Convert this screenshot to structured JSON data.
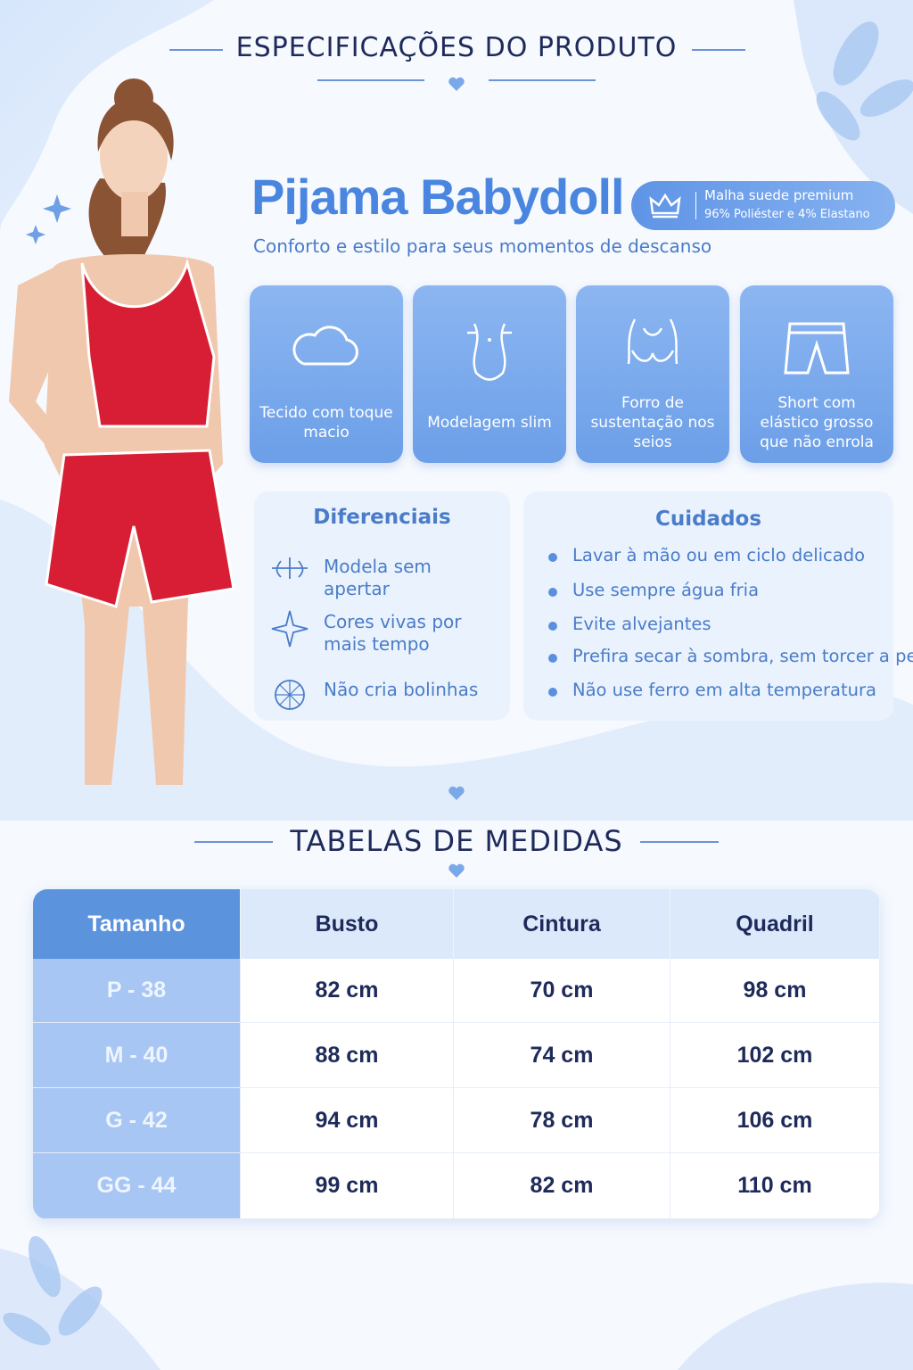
{
  "header": {
    "title": "ESPECIFICAÇÕES DO PRODUTO"
  },
  "product": {
    "name": "Pijama Babydoll",
    "badge": [
      "Malha suede premium",
      "96% Poliéster e 4% Elastano"
    ],
    "subtitle": "Conforto e estilo para seus momentos de descanso"
  },
  "features": [
    "Tecido com toque macio",
    "Modelagem slim",
    "Forro de sustentação nos seios",
    "Short com elástico grosso que não enrola"
  ],
  "diferenciais": {
    "title": "Diferenciais",
    "items": [
      "Modela sem apertar",
      "Cores vivas por mais tempo",
      "Não cria bolinhas"
    ]
  },
  "cuidados": {
    "title": "Cuidados",
    "items": [
      "Lavar à mão ou em ciclo delicado",
      "Use sempre água fria",
      "Evite alvejantes",
      "Prefira secar à sombra, sem torcer a peça",
      "Não use ferro em alta temperatura"
    ]
  },
  "sizes": {
    "title": "TABELAS DE MEDIDAS"
  },
  "table": {
    "header": [
      "Tamanho",
      "Busto",
      "Cintura",
      "Quadril"
    ],
    "rows": [
      [
        "P - 38",
        "82 cm",
        "70 cm",
        "98 cm"
      ],
      [
        "M - 40",
        "88 cm",
        "74 cm",
        "102 cm"
      ],
      [
        "G - 42",
        "94 cm",
        "78 cm",
        "106 cm"
      ],
      [
        "GG - 44",
        "99 cm",
        "82 cm",
        "110 cm"
      ]
    ]
  }
}
